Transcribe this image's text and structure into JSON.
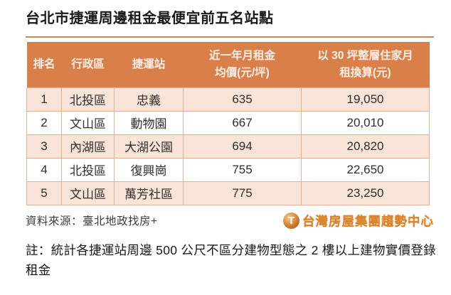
{
  "page": {
    "title": "台北市捷運周邊租金最便宜前五名站點"
  },
  "table": {
    "headers": [
      {
        "line1": "排名"
      },
      {
        "line1": "行政區"
      },
      {
        "line1": "捷運站"
      },
      {
        "line1": "近一年月租金",
        "line2": "均價(元/坪)"
      },
      {
        "line1": "以 30 坪整層住家月",
        "line2": "租換算(元)"
      }
    ],
    "rows": [
      {
        "rank": "1",
        "district": "北投區",
        "station": "忠義",
        "rent_per_ping": "635",
        "monthly_30ping": "19,050"
      },
      {
        "rank": "2",
        "district": "文山區",
        "station": "動物園",
        "rent_per_ping": "667",
        "monthly_30ping": "20,010"
      },
      {
        "rank": "3",
        "district": "內湖區",
        "station": "大湖公園",
        "rent_per_ping": "694",
        "monthly_30ping": "20,820"
      },
      {
        "rank": "4",
        "district": "北投區",
        "station": "復興崗",
        "rent_per_ping": "755",
        "monthly_30ping": "22,650"
      },
      {
        "rank": "5",
        "district": "文山區",
        "station": "萬芳社區",
        "rent_per_ping": "775",
        "monthly_30ping": "23,250"
      }
    ]
  },
  "footer": {
    "source": "資料來源：臺北地政找房+",
    "logo_icon": "T",
    "logo_text": "台灣房屋集團趨勢中心"
  },
  "note": "註：統計各捷運站周邊 500 公尺不區分建物型態之 2 樓以上建物實價登錄租金",
  "colors": {
    "header_bg": "#D9804A",
    "header_text": "#FBEFE6",
    "row_alt_bg": "#F9E4D7",
    "cell_border": "#DCB29A",
    "title_rule": "#C8895A",
    "logo_orange": "#E0862A"
  },
  "chart_data": {
    "type": "table",
    "title": "台北市捷運周邊租金最便宜前五名站點",
    "columns": [
      "排名",
      "行政區",
      "捷運站",
      "近一年月租金均價(元/坪)",
      "以 30 坪整層住家月租換算(元)"
    ],
    "rows": [
      [
        1,
        "北投區",
        "忠義",
        635,
        19050
      ],
      [
        2,
        "文山區",
        "動物園",
        667,
        20010
      ],
      [
        3,
        "內湖區",
        "大湖公園",
        694,
        20820
      ],
      [
        4,
        "北投區",
        "復興崗",
        755,
        22650
      ],
      [
        5,
        "文山區",
        "萬芳社區",
        775,
        23250
      ]
    ],
    "source": "資料來源：臺北地政找房+",
    "note": "註：統計各捷運站周邊 500 公尺不區分建物型態之 2 樓以上建物實價登錄租金",
    "legend_position": "none",
    "grid": true
  }
}
